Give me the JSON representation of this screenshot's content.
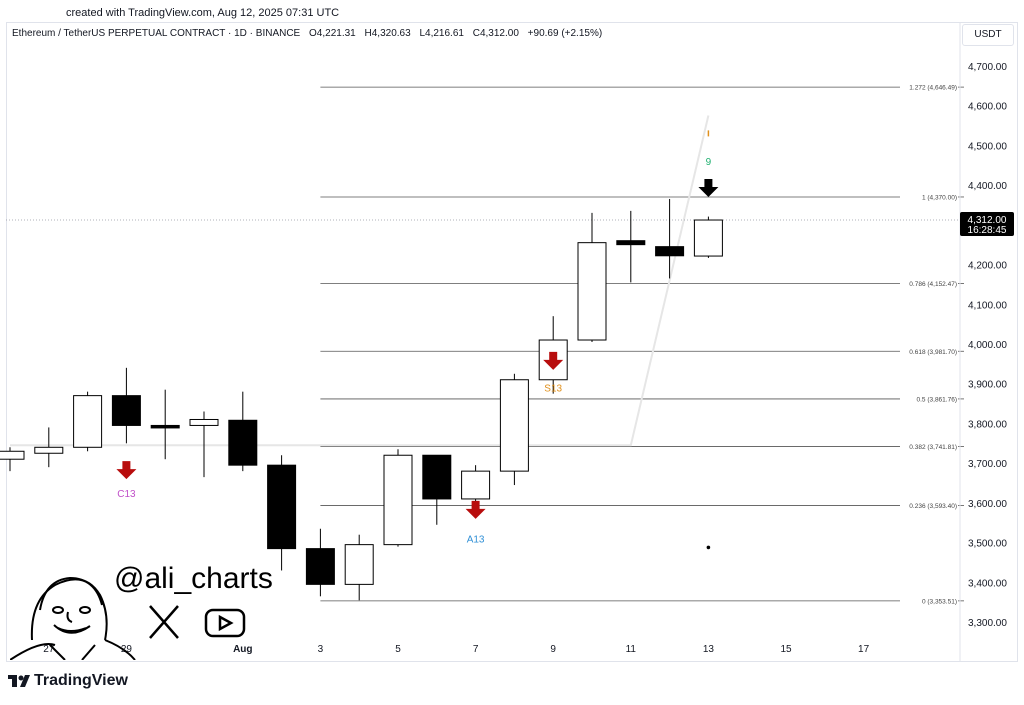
{
  "header": {
    "created": "created with TradingView.com, Aug 12, 2025 07:31 UTC"
  },
  "legend": {
    "symbol": "Ethereum / TetherUS PERPETUAL CONTRACT · 1D · BINANCE",
    "open": "O4,221.31",
    "high": "H4,320.63",
    "low": "L4,216.61",
    "close": "C4,312.00",
    "change": "+90.69 (+2.15%)"
  },
  "currency": "USDT",
  "price_tag": {
    "price": "4,312.00",
    "countdown": "16:28:45"
  },
  "watermark": {
    "handle": "@ali_charts"
  },
  "branding": {
    "logo_text": "TradingView"
  },
  "chart_data": {
    "type": "candlestick",
    "y_axis": {
      "ticks": [
        3300,
        3400,
        3500,
        3600,
        3700,
        3800,
        3900,
        4000,
        4100,
        4200,
        4300,
        4400,
        4500,
        4600,
        4700
      ],
      "tick_labels": [
        "3,300.00",
        "3,400.00",
        "3,500.00",
        "3,600.00",
        "3,700.00",
        "3,800.00",
        "3,900.00",
        "4,000.00",
        "4,100.00",
        "4,200.00",
        "4,300.00",
        "4,400.00",
        "4,500.00",
        "4,600.00",
        "4,700.00"
      ],
      "range": [
        3255,
        4755
      ]
    },
    "x_axis": {
      "dates": [
        "2025-07-26",
        "2025-07-27",
        "2025-07-28",
        "2025-07-29",
        "2025-07-30",
        "2025-07-31",
        "2025-08-01",
        "2025-08-02",
        "2025-08-03",
        "2025-08-04",
        "2025-08-05",
        "2025-08-06",
        "2025-08-07",
        "2025-08-08",
        "2025-08-09",
        "2025-08-10",
        "2025-08-11",
        "2025-08-12",
        "2025-08-13",
        "2025-08-14",
        "2025-08-15",
        "2025-08-16",
        "2025-08-17"
      ],
      "tick_labels": [
        {
          "date": "2025-07-27",
          "label": "27"
        },
        {
          "date": "2025-07-29",
          "label": "29"
        },
        {
          "date": "2025-08-01",
          "label": "Aug"
        },
        {
          "date": "2025-08-03",
          "label": "3"
        },
        {
          "date": "2025-08-05",
          "label": "5"
        },
        {
          "date": "2025-08-07",
          "label": "7"
        },
        {
          "date": "2025-08-09",
          "label": "9"
        },
        {
          "date": "2025-08-11",
          "label": "11"
        },
        {
          "date": "2025-08-13",
          "label": "13"
        },
        {
          "date": "2025-08-15",
          "label": "15"
        },
        {
          "date": "2025-08-17",
          "label": "17"
        }
      ]
    },
    "candles": [
      {
        "date": "2025-07-26",
        "open": 3710,
        "high": 3740,
        "low": 3680,
        "close": 3730
      },
      {
        "date": "2025-07-27",
        "open": 3725,
        "high": 3790,
        "low": 3690,
        "close": 3740
      },
      {
        "date": "2025-07-28",
        "open": 3740,
        "high": 3880,
        "low": 3730,
        "close": 3870
      },
      {
        "date": "2025-07-29",
        "open": 3870,
        "high": 3940,
        "low": 3750,
        "close": 3795
      },
      {
        "date": "2025-07-30",
        "open": 3795,
        "high": 3885,
        "low": 3710,
        "close": 3790
      },
      {
        "date": "2025-07-31",
        "open": 3795,
        "high": 3830,
        "low": 3665,
        "close": 3810
      },
      {
        "date": "2025-08-01",
        "open": 3808,
        "high": 3880,
        "low": 3680,
        "close": 3695
      },
      {
        "date": "2025-08-02",
        "open": 3695,
        "high": 3720,
        "low": 3430,
        "close": 3485
      },
      {
        "date": "2025-08-03",
        "open": 3485,
        "high": 3535,
        "low": 3365,
        "close": 3395
      },
      {
        "date": "2025-08-04",
        "open": 3395,
        "high": 3520,
        "low": 3355,
        "close": 3495
      },
      {
        "date": "2025-08-05",
        "open": 3495,
        "high": 3735,
        "low": 3490,
        "close": 3720
      },
      {
        "date": "2025-08-06",
        "open": 3720,
        "high": 3720,
        "low": 3545,
        "close": 3610
      },
      {
        "date": "2025-08-07",
        "open": 3610,
        "high": 3695,
        "low": 3565,
        "close": 3680
      },
      {
        "date": "2025-08-08",
        "open": 3680,
        "high": 3925,
        "low": 3645,
        "close": 3910
      },
      {
        "date": "2025-08-09",
        "open": 3910,
        "high": 4070,
        "low": 3875,
        "close": 4010
      },
      {
        "date": "2025-08-10",
        "open": 4010,
        "high": 4330,
        "low": 4005,
        "close": 4255
      },
      {
        "date": "2025-08-11",
        "open": 4260,
        "high": 4335,
        "low": 4155,
        "close": 4250
      },
      {
        "date": "2025-08-12",
        "open": 4245,
        "high": 4365,
        "low": 4165,
        "close": 4222
      },
      {
        "date": "2025-08-13",
        "open": 4221.31,
        "high": 4320.63,
        "low": 4216.61,
        "close": 4312.0
      }
    ],
    "fib_levels": [
      {
        "ratio": 0,
        "price": 3353.51,
        "label": "0 (3,353.51)"
      },
      {
        "ratio": 0.236,
        "price": 3593.4,
        "label": "0.236 (3,593.40)"
      },
      {
        "ratio": 0.382,
        "price": 3741.81,
        "label": "0.382 (3,741.81)"
      },
      {
        "ratio": 0.5,
        "price": 3861.76,
        "label": "0.5 (3,861.76)"
      },
      {
        "ratio": 0.618,
        "price": 3981.7,
        "label": "0.618 (3,981.70)"
      },
      {
        "ratio": 0.786,
        "price": 4152.47,
        "label": "0.786 (4,152.47)"
      },
      {
        "ratio": 1,
        "price": 4370.0,
        "label": "1 (4,370.00)"
      },
      {
        "ratio": 1.272,
        "price": 4646.49,
        "label": "1.272 (4,646.49)"
      }
    ],
    "fib_start_date": "2025-08-03",
    "annotations": [
      {
        "date": "2025-07-29",
        "type": "arrow-down",
        "arrow_price": 3680,
        "text": "C13",
        "text_price": 3615,
        "color": "#b80d0d",
        "text_color": "#c04fc8"
      },
      {
        "date": "2025-08-07",
        "type": "arrow-down",
        "arrow_price": 3580,
        "text": "A13",
        "text_price": 3500,
        "color": "#b80d0d",
        "text_color": "#2f8fd6"
      },
      {
        "date": "2025-08-09",
        "type": "arrow-down",
        "arrow_price": 3955,
        "text": "S13",
        "text_price": 3880,
        "color": "#b80d0d",
        "text_color": "#e0901c"
      },
      {
        "date": "2025-08-13",
        "type": "arrow-down",
        "arrow_price": 4390,
        "text": "9",
        "text_price": 4450,
        "color": "#000000",
        "text_color": "#20b070"
      },
      {
        "date": "2025-08-13",
        "type": "tick",
        "arrow_price": 4530,
        "text": "",
        "text_price": 4530,
        "color": "#e0901c",
        "text_color": "#e0901c"
      }
    ],
    "current_price": 4312.0,
    "ma_line": [
      {
        "date": "2025-07-26",
        "price": 3745
      },
      {
        "date": "2025-08-11",
        "price": 3745
      },
      {
        "date": "2025-08-13",
        "price": 4575
      }
    ],
    "dot": {
      "date": "2025-08-13",
      "price": 3488
    },
    "colors": {
      "bull_fill": "#ffffff",
      "bear_fill": "#000000",
      "candle_stroke": "#000000",
      "fib_line": "#555555",
      "ma_line": "#e6e6e6",
      "price_tag_bg": "#000000"
    }
  }
}
